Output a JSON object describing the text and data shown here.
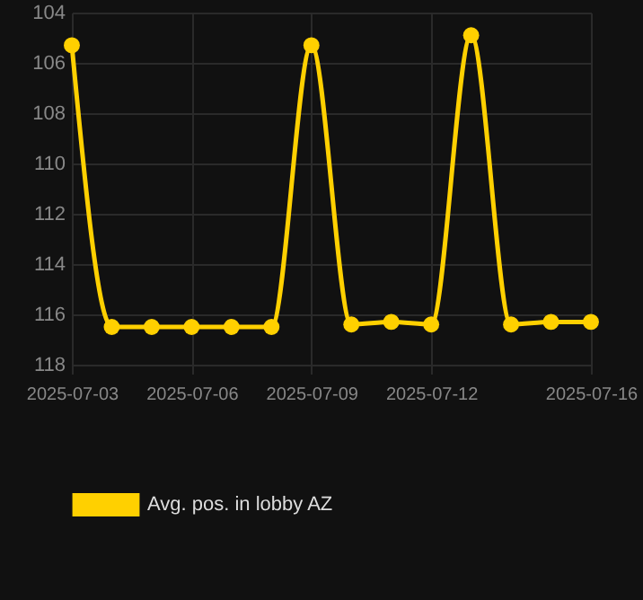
{
  "chart_data": {
    "type": "line",
    "x": [
      "2025-07-03",
      "2025-07-04",
      "2025-07-05",
      "2025-07-06",
      "2025-07-07",
      "2025-07-08",
      "2025-07-09",
      "2025-07-10",
      "2025-07-11",
      "2025-07-12",
      "2025-07-13",
      "2025-07-14",
      "2025-07-15",
      "2025-07-16"
    ],
    "series": [
      {
        "name": "Avg. pos. in lobby AZ",
        "color": "#ffd000",
        "values": [
          105.3,
          116.5,
          116.5,
          116.5,
          116.5,
          116.5,
          105.3,
          116.4,
          116.3,
          116.4,
          104.9,
          116.4,
          116.3,
          116.3
        ]
      }
    ],
    "xlim": [
      "2025-07-03",
      "2025-07-16"
    ],
    "xticks": [
      "2025-07-03",
      "2025-07-06",
      "2025-07-09",
      "2025-07-12",
      "2025-07-16"
    ],
    "ylim": [
      118,
      104
    ],
    "yticks": [
      104,
      106,
      108,
      110,
      112,
      114,
      116,
      118
    ],
    "grid": true,
    "legend": "bottom",
    "marker": "circle",
    "line_style": "solid"
  }
}
